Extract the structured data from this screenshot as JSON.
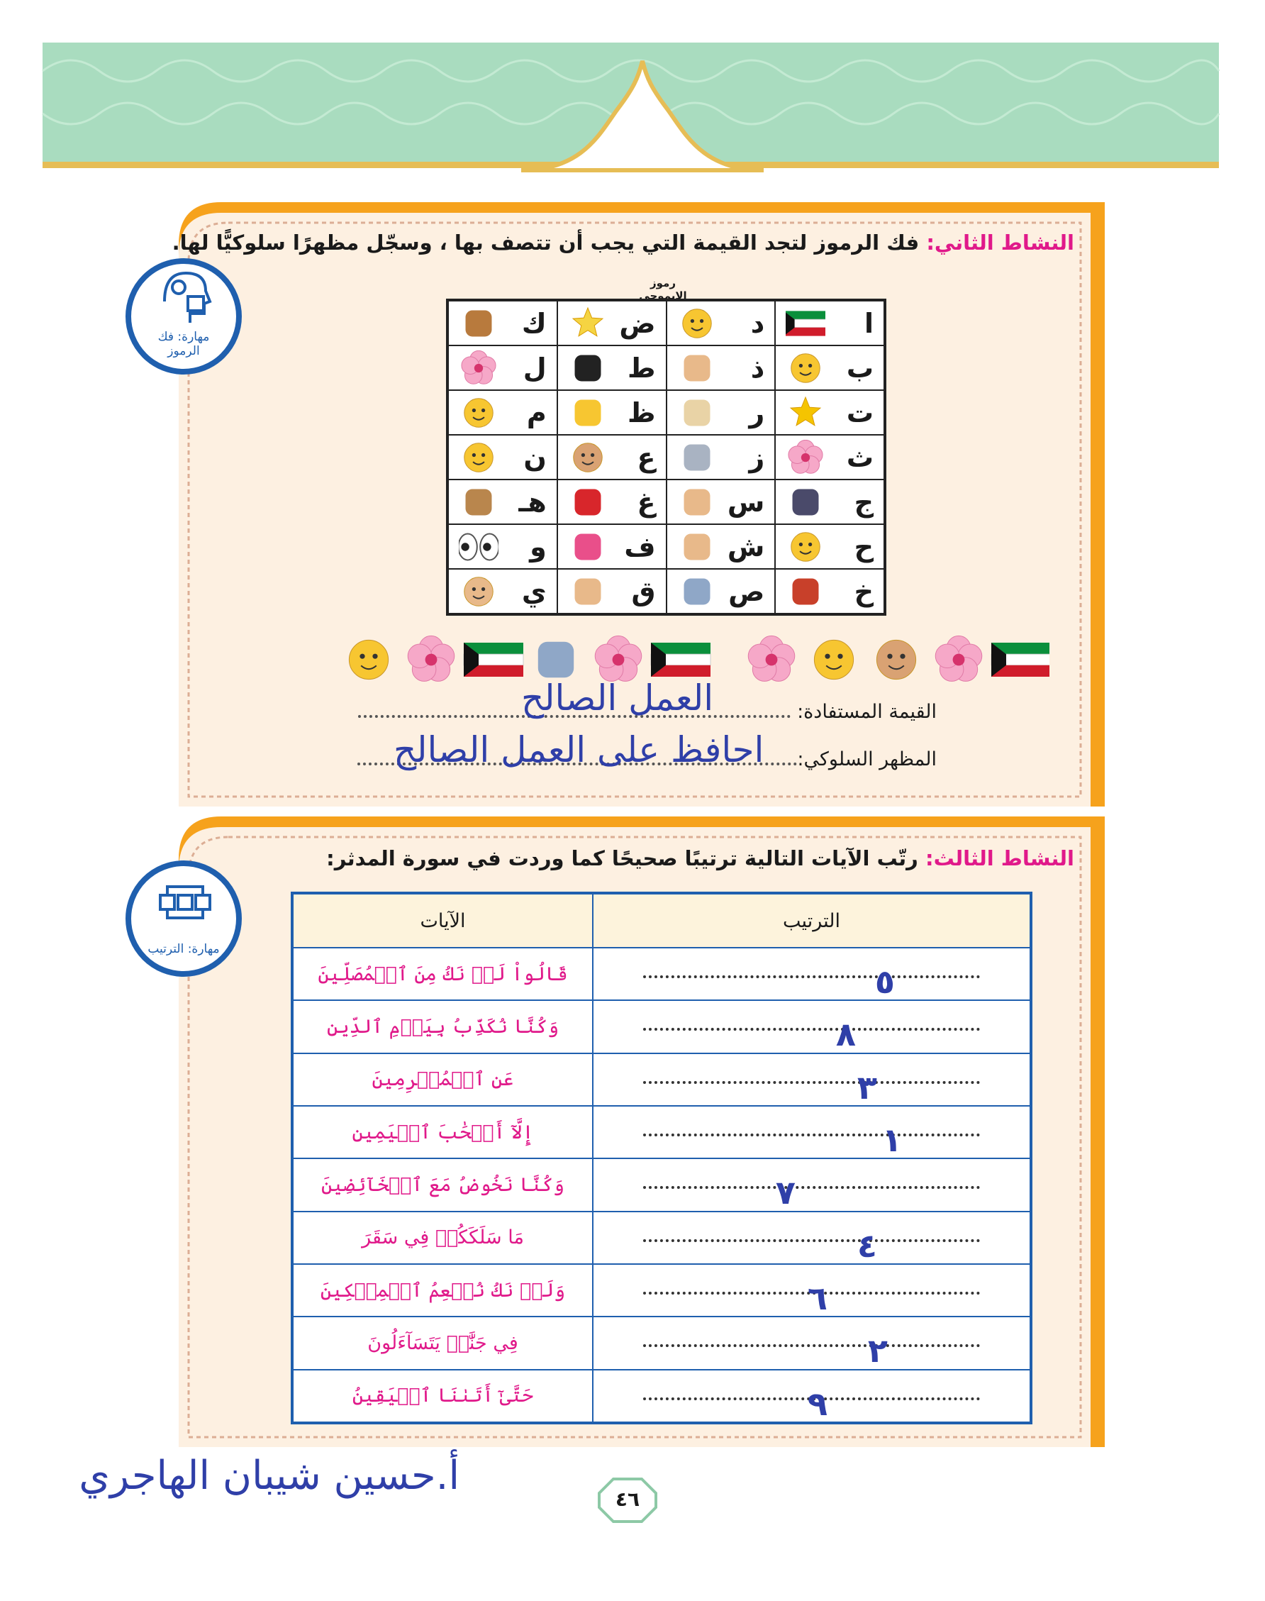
{
  "activity_two": {
    "label": "النشاط الثاني:",
    "instruction": "فك الرموز لتجد القيمة التي يجب أن تتصف بها ، وسجّل مظهرًا سلوكيًّا لها.",
    "skill": "مهارة: فك الرموز",
    "table_caption": "رموز الإيموجي",
    "table": {
      "rows": [
        [
          "ا",
          "د",
          "ض",
          "ك"
        ],
        [
          "ب",
          "ذ",
          "ط",
          "ل"
        ],
        [
          "ت",
          "ر",
          "ظ",
          "م"
        ],
        [
          "ث",
          "ز",
          "ع",
          "ن"
        ],
        [
          "ج",
          "س",
          "غ",
          "هـ"
        ],
        [
          "ح",
          "ش",
          "ف",
          "و"
        ],
        [
          "خ",
          "ص",
          "ق",
          "ي"
        ]
      ]
    },
    "value_label": "القيمة المستفادة:",
    "value_answer": "العمل الصالح",
    "behavior_label": "المظهر السلوكي:",
    "behavior_answer": "احافظ على العمل الصالح"
  },
  "activity_three": {
    "label": "النشاط الثالث:",
    "instruction": "رتّب الآيات التالية ترتيبًا صحيحًا كما وردت في سورة المدثر:",
    "skill": "مهارة: الترتيب",
    "table": {
      "headers": [
        "الترتيب",
        "الآيات"
      ],
      "rows": [
        [
          "٥",
          "قَالُواْ لَمۡ نَكُ مِنَ ٱلۡمُصَلِّينَ"
        ],
        [
          "٨",
          "وَكُنَّا نُكَذِّبُ بِيَوۡمِ ٱلدِّينِ"
        ],
        [
          "٣",
          "عَنِ ٱلۡمُجۡرِمِينَ"
        ],
        [
          "١",
          "إِلَّآ أَصۡحَٰبَ ٱلۡيَمِينِ"
        ],
        [
          "٧",
          "وَكُنَّا نَخُوضُ مَعَ ٱلۡخَآئِضِينَ"
        ],
        [
          "٤",
          "مَا سَلَكَكُمۡ فِي سَقَرَ"
        ],
        [
          "٦",
          "وَلَمۡ نَكُ نُطۡعِمُ ٱلۡمِسۡكِينَ"
        ],
        [
          "٢",
          "فِي جَنَّٰتٖ يَتَسَآءَلُونَ"
        ],
        [
          "٩",
          "حَتَّىٰٓ أَتَىٰنَا ٱلۡيَقِينُ"
        ]
      ]
    }
  },
  "footer": {
    "author": "أ.حسين شيبان الهاجري",
    "page_number": "٤٦"
  }
}
